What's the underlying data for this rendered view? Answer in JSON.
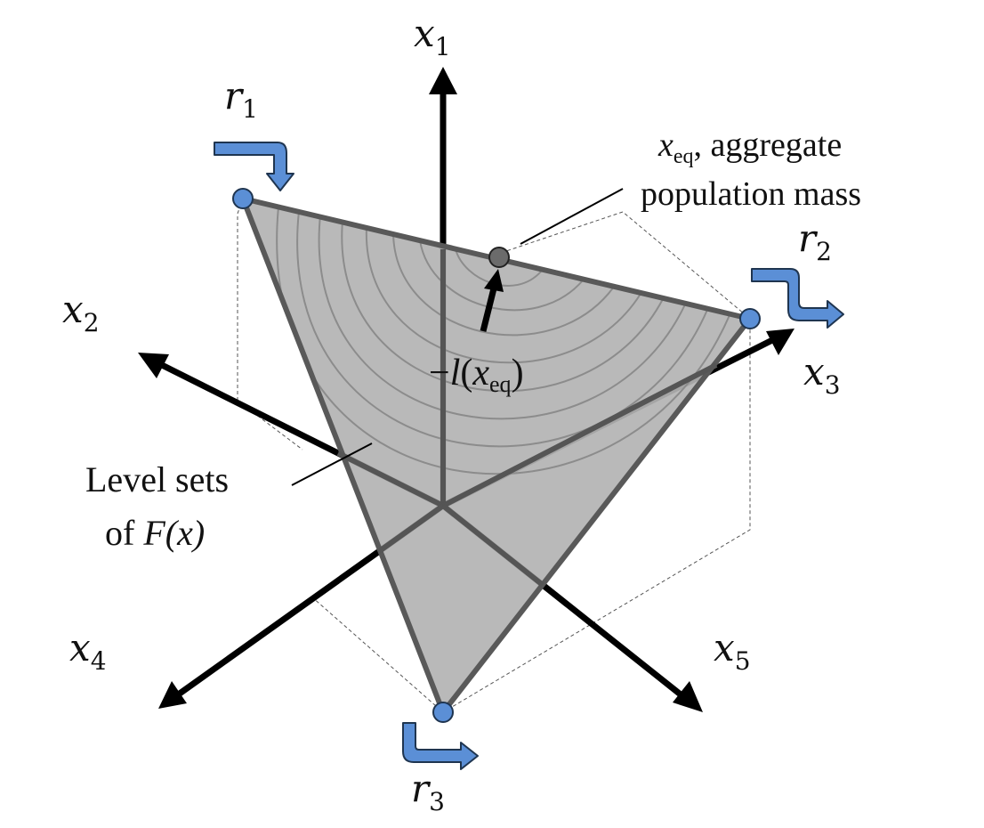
{
  "colors": {
    "simplex_fill": "#b3b3b3",
    "simplex_edge": "#595959",
    "contour": "#8c8c8c",
    "axis": "#000000",
    "node_fill": "#5b8fd6",
    "node_stroke": "#1f3550",
    "eq_point": "#6b6b6b",
    "flow_arrow_fill": "#5b8fd6",
    "flow_arrow_stroke": "#1f3550"
  },
  "axes": {
    "x1": {
      "var": "x",
      "sub": "1"
    },
    "x2": {
      "var": "x",
      "sub": "2"
    },
    "x3": {
      "var": "x",
      "sub": "3"
    },
    "x4": {
      "var": "x",
      "sub": "4"
    },
    "x5": {
      "var": "x",
      "sub": "5"
    }
  },
  "rates": {
    "r1": {
      "var": "r",
      "sub": "1"
    },
    "r2": {
      "var": "r",
      "sub": "2"
    },
    "r3": {
      "var": "r",
      "sub": "3"
    }
  },
  "annotations": {
    "eq_var": "x",
    "eq_sub": "eq",
    "eq_line1_rest": ", aggregate",
    "eq_line2": "population mass",
    "gradient_prefix": "−",
    "gradient_fn": "l",
    "gradient_open": "(",
    "gradient_var": "x",
    "gradient_sub": "eq",
    "gradient_close": ")",
    "level_line1": "Level sets",
    "level_line2_prefix": "of ",
    "level_fn": "F",
    "level_args": "(x)"
  }
}
